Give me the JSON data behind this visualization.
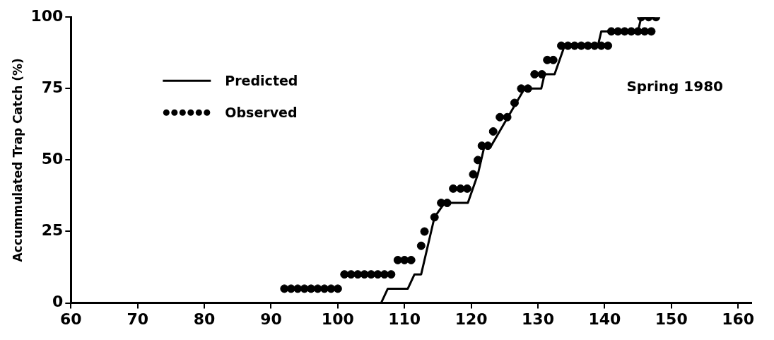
{
  "chart_data": {
    "type": "line",
    "ylabel": "Accummulated Trap Catch (%)",
    "xlim": [
      60,
      162
    ],
    "xticks": [
      60,
      70,
      80,
      90,
      100,
      110,
      120,
      130,
      140,
      150,
      160
    ],
    "ylim": [
      0,
      100
    ],
    "yticks": [
      0,
      25,
      50,
      75,
      100
    ],
    "grid": false,
    "legend": "top left",
    "annotations": [
      "Spring 1980"
    ],
    "series": [
      {
        "name": "Predicted",
        "color": "#000000",
        "marker": "none",
        "line_style": "solid",
        "x": [
          106.5,
          107.5,
          110.5,
          111.5,
          112.5,
          114.5,
          116,
          119.5,
          121,
          122,
          123,
          128,
          130.5,
          131,
          132.5,
          134,
          139,
          139.5,
          145,
          145.5,
          147.5
        ],
        "values": [
          0,
          5,
          5,
          10,
          10,
          30,
          35,
          35,
          45,
          55,
          55,
          75,
          75,
          80,
          80,
          90,
          90,
          95,
          95,
          100,
          100
        ]
      },
      {
        "name": "Observed",
        "type": "scatter",
        "color": "#000000",
        "marker": "circle",
        "x": [
          92,
          93,
          94,
          95,
          96,
          97,
          98,
          99,
          100,
          101,
          102,
          103,
          104,
          105,
          106,
          107,
          108,
          109,
          110,
          111,
          112.5,
          113,
          114.5,
          115.5,
          116.4,
          117.3,
          118.4,
          119.4,
          120.3,
          121,
          121.6,
          122.5,
          123.3,
          124.3,
          125.4,
          126.5,
          127.5,
          128.5,
          129.5,
          130.6,
          131.4,
          132.3,
          133.5,
          134.5,
          135.5,
          136.5,
          137.5,
          138.5,
          139.5,
          140.5,
          141,
          142,
          143,
          144,
          145,
          146,
          147,
          145.5,
          146.6,
          147.7
        ],
        "values": [
          5,
          5,
          5,
          5,
          5,
          5,
          5,
          5,
          5,
          10,
          10,
          10,
          10,
          10,
          10,
          10,
          10,
          15,
          15,
          15,
          20,
          25,
          30,
          35,
          35,
          40,
          40,
          40,
          45,
          50,
          55,
          55,
          60,
          65,
          65,
          70,
          75,
          75,
          80,
          80,
          85,
          85,
          90,
          90,
          90,
          90,
          90,
          90,
          90,
          90,
          95,
          95,
          95,
          95,
          95,
          95,
          95,
          100,
          100,
          100
        ]
      }
    ]
  }
}
